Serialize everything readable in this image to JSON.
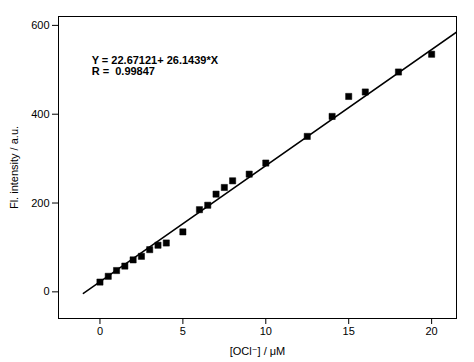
{
  "chart_data": {
    "type": "scatter",
    "xlabel": "[OCl⁻] / μM",
    "ylabel": "Fl. intensity / a.u.",
    "xlim": [
      -2.5,
      21.5
    ],
    "ylim": [
      -60,
      620
    ],
    "xticks": [
      0,
      5,
      10,
      15,
      20
    ],
    "yticks": [
      0,
      200,
      400,
      600
    ],
    "series": [
      {
        "type": "scatter",
        "color": "black",
        "marker": "square",
        "x": [
          0.0,
          0.5,
          1.0,
          1.5,
          2.0,
          2.5,
          3.0,
          3.5,
          4.0,
          5.0,
          6.0,
          6.5,
          7.0,
          7.5,
          8.0,
          9.0,
          10.0,
          12.5,
          14.0,
          15.0,
          16.0,
          18.0,
          20.0
        ],
        "values": [
          22,
          35,
          48,
          58,
          72,
          80,
          95,
          105,
          110,
          135,
          185,
          195,
          220,
          235,
          250,
          265,
          290,
          350,
          395,
          440,
          450,
          495,
          535
        ]
      },
      {
        "type": "line",
        "color": "black",
        "x": [
          -1.0,
          21.5
        ],
        "values": [
          -3.47269,
          584.76506
        ]
      }
    ],
    "annotations": [
      {
        "text": "Y = 22.67121+ 26.1439*X\nR =  0.99847",
        "x": -0.5,
        "y": 530
      }
    ]
  }
}
